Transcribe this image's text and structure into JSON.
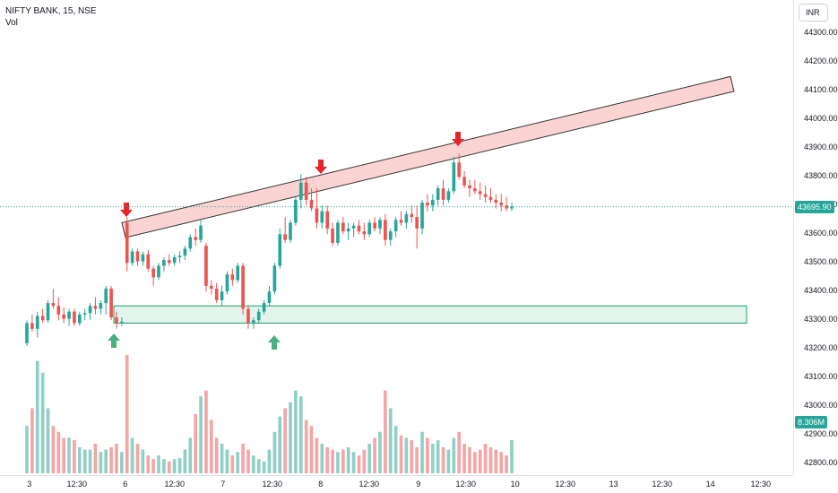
{
  "legend": {
    "symbol": "NIFTY BANK, 15, NSE",
    "indicator": "Vol"
  },
  "currency": "INR",
  "last_price_label": "43695.90",
  "volume_label": "8.306M",
  "colors": {
    "up": "#26a69a",
    "down": "#ef5350",
    "vol_up": "#8fd0c6",
    "vol_down": "#f5a5a5",
    "zone_fill": "#e3f4ec",
    "zone_stroke": "#1a9e6b",
    "channel_fill": "#fbd3d3",
    "arrow_down": "#e5252a",
    "arrow_up": "#4caf7f"
  },
  "chart_data": {
    "type": "candlestick",
    "y_ticks": [
      "44300.00",
      "44200.00",
      "44100.00",
      "44000.00",
      "43900.00",
      "43800.00",
      "43700.00",
      "43600.00",
      "43500.00",
      "43400.00",
      "43300.00",
      "43200.00",
      "43100.00",
      "43000.00",
      "42900.00",
      "42800.00"
    ],
    "x_ticks": [
      "3",
      "12:30",
      "6",
      "12:30",
      "7",
      "12:30",
      "8",
      "12:30",
      "9",
      "12:30",
      "10",
      "12:30",
      "13",
      "12:30",
      "14",
      "12:30"
    ],
    "ylim": [
      42760,
      44370
    ],
    "candles": [
      [
        43220,
        43300,
        43210,
        43290
      ],
      [
        43290,
        43320,
        43260,
        43270
      ],
      [
        43270,
        43330,
        43240,
        43315
      ],
      [
        43315,
        43340,
        43290,
        43300
      ],
      [
        43300,
        43370,
        43290,
        43360
      ],
      [
        43360,
        43410,
        43340,
        43350
      ],
      [
        43350,
        43380,
        43300,
        43320
      ],
      [
        43320,
        43345,
        43290,
        43305
      ],
      [
        43305,
        43340,
        43280,
        43330
      ],
      [
        43330,
        43340,
        43280,
        43290
      ],
      [
        43290,
        43330,
        43280,
        43320
      ],
      [
        43320,
        43340,
        43300,
        43325
      ],
      [
        43325,
        43360,
        43300,
        43350
      ],
      [
        43350,
        43380,
        43320,
        43340
      ],
      [
        43340,
        43370,
        43320,
        43360
      ],
      [
        43360,
        43420,
        43320,
        43410
      ],
      [
        43410,
        43420,
        43300,
        43310
      ],
      [
        43310,
        43330,
        43270,
        43290
      ],
      [
        43290,
        43310,
        43280,
        43295
      ],
      [
        43640,
        43660,
        43470,
        43500
      ],
      [
        43500,
        43550,
        43490,
        43540
      ],
      [
        43540,
        43550,
        43490,
        43505
      ],
      [
        43505,
        43540,
        43490,
        43530
      ],
      [
        43530,
        43545,
        43470,
        43480
      ],
      [
        43480,
        43490,
        43420,
        43450
      ],
      [
        43450,
        43500,
        43440,
        43490
      ],
      [
        43490,
        43520,
        43470,
        43510
      ],
      [
        43510,
        43530,
        43490,
        43500
      ],
      [
        43500,
        43530,
        43490,
        43520
      ],
      [
        43520,
        43540,
        43500,
        43525
      ],
      [
        43525,
        43560,
        43510,
        43550
      ],
      [
        43550,
        43600,
        43540,
        43590
      ],
      [
        43590,
        43620,
        43560,
        43580
      ],
      [
        43580,
        43650,
        43570,
        43630
      ],
      [
        43560,
        43570,
        43400,
        43420
      ],
      [
        43420,
        43440,
        43390,
        43410
      ],
      [
        43410,
        43430,
        43360,
        43370
      ],
      [
        43370,
        43420,
        43350,
        43400
      ],
      [
        43400,
        43470,
        43390,
        43460
      ],
      [
        43460,
        43480,
        43420,
        43440
      ],
      [
        43440,
        43500,
        43430,
        43490
      ],
      [
        43490,
        43500,
        43320,
        43340
      ],
      [
        43340,
        43350,
        43270,
        43290
      ],
      [
        43290,
        43310,
        43270,
        43300
      ],
      [
        43300,
        43340,
        43290,
        43330
      ],
      [
        43330,
        43370,
        43320,
        43360
      ],
      [
        43360,
        43420,
        43350,
        43400
      ],
      [
        43400,
        43500,
        43390,
        43490
      ],
      [
        43490,
        43620,
        43480,
        43600
      ],
      [
        43600,
        43660,
        43570,
        43580
      ],
      [
        43580,
        43650,
        43570,
        43640
      ],
      [
        43640,
        43730,
        43630,
        43720
      ],
      [
        43720,
        43810,
        43690,
        43780
      ],
      [
        43780,
        43800,
        43700,
        43720
      ],
      [
        43720,
        43760,
        43680,
        43690
      ],
      [
        43690,
        43760,
        43620,
        43640
      ],
      [
        43640,
        43700,
        43620,
        43680
      ],
      [
        43680,
        43700,
        43600,
        43620
      ],
      [
        43620,
        43640,
        43560,
        43570
      ],
      [
        43570,
        43650,
        43560,
        43640
      ],
      [
        43640,
        43660,
        43600,
        43610
      ],
      [
        43610,
        43640,
        43580,
        43620
      ],
      [
        43620,
        43640,
        43590,
        43630
      ],
      [
        43630,
        43650,
        43600,
        43610
      ],
      [
        43610,
        43640,
        43580,
        43600
      ],
      [
        43600,
        43650,
        43590,
        43640
      ],
      [
        43640,
        43660,
        43610,
        43620
      ],
      [
        43620,
        43660,
        43600,
        43650
      ],
      [
        43650,
        43670,
        43560,
        43580
      ],
      [
        43580,
        43620,
        43560,
        43610
      ],
      [
        43610,
        43660,
        43590,
        43650
      ],
      [
        43650,
        43680,
        43630,
        43640
      ],
      [
        43640,
        43680,
        43620,
        43670
      ],
      [
        43670,
        43700,
        43640,
        43660
      ],
      [
        43660,
        43700,
        43550,
        43620
      ],
      [
        43620,
        43720,
        43600,
        43710
      ],
      [
        43710,
        43740,
        43680,
        43700
      ],
      [
        43700,
        43740,
        43680,
        43720
      ],
      [
        43720,
        43770,
        43700,
        43760
      ],
      [
        43760,
        43790,
        43700,
        43720
      ],
      [
        43720,
        43760,
        43710,
        43750
      ],
      [
        43750,
        43870,
        43740,
        43850
      ],
      [
        43850,
        43880,
        43790,
        43800
      ],
      [
        43800,
        43820,
        43760,
        43770
      ],
      [
        43770,
        43790,
        43730,
        43760
      ],
      [
        43760,
        43790,
        43740,
        43750
      ],
      [
        43750,
        43780,
        43720,
        43740
      ],
      [
        43740,
        43770,
        43710,
        43730
      ],
      [
        43730,
        43760,
        43710,
        43720
      ],
      [
        43720,
        43740,
        43690,
        43710
      ],
      [
        43710,
        43740,
        43680,
        43700
      ],
      [
        43700,
        43730,
        43680,
        43690
      ],
      [
        43690,
        43710,
        43680,
        43696
      ]
    ],
    "volume_up": [
      1,
      0,
      1,
      1,
      1,
      0,
      0,
      0,
      1,
      0,
      1,
      1,
      1,
      0,
      1,
      1,
      0,
      0,
      1,
      0,
      1,
      0,
      1,
      0,
      0,
      1,
      1,
      0,
      1,
      1,
      1,
      1,
      0,
      1,
      0,
      0,
      0,
      1,
      1,
      0,
      1,
      0,
      0,
      1,
      1,
      1,
      1,
      1,
      1,
      0,
      1,
      1,
      1,
      0,
      0,
      0,
      1,
      0,
      0,
      1,
      0,
      1,
      1,
      0,
      0,
      1,
      0,
      1,
      0,
      1,
      1,
      0,
      1,
      0,
      0,
      1,
      0,
      1,
      1,
      0,
      1,
      1,
      0,
      0,
      0,
      0,
      0,
      0,
      0,
      0,
      0,
      0,
      1
    ],
    "volume": [
      0.4,
      0.55,
      0.95,
      0.85,
      0.55,
      0.4,
      0.35,
      0.3,
      0.3,
      0.28,
      0.22,
      0.2,
      0.2,
      0.25,
      0.18,
      0.2,
      0.22,
      0.25,
      0.18,
      1.0,
      0.3,
      0.25,
      0.2,
      0.15,
      0.12,
      0.15,
      0.12,
      0.1,
      0.12,
      0.13,
      0.2,
      0.3,
      0.5,
      0.65,
      0.7,
      0.45,
      0.3,
      0.25,
      0.2,
      0.15,
      0.18,
      0.25,
      0.2,
      0.15,
      0.12,
      0.1,
      0.2,
      0.35,
      0.48,
      0.55,
      0.6,
      0.7,
      0.65,
      0.45,
      0.4,
      0.3,
      0.25,
      0.22,
      0.2,
      0.18,
      0.2,
      0.22,
      0.18,
      0.15,
      0.2,
      0.25,
      0.3,
      0.35,
      0.7,
      0.55,
      0.4,
      0.32,
      0.3,
      0.28,
      0.22,
      0.35,
      0.3,
      0.25,
      0.28,
      0.22,
      0.2,
      0.3,
      0.35,
      0.25,
      0.22,
      0.18,
      0.2,
      0.25,
      0.22,
      0.2,
      0.18,
      0.15,
      0.28
    ]
  }
}
